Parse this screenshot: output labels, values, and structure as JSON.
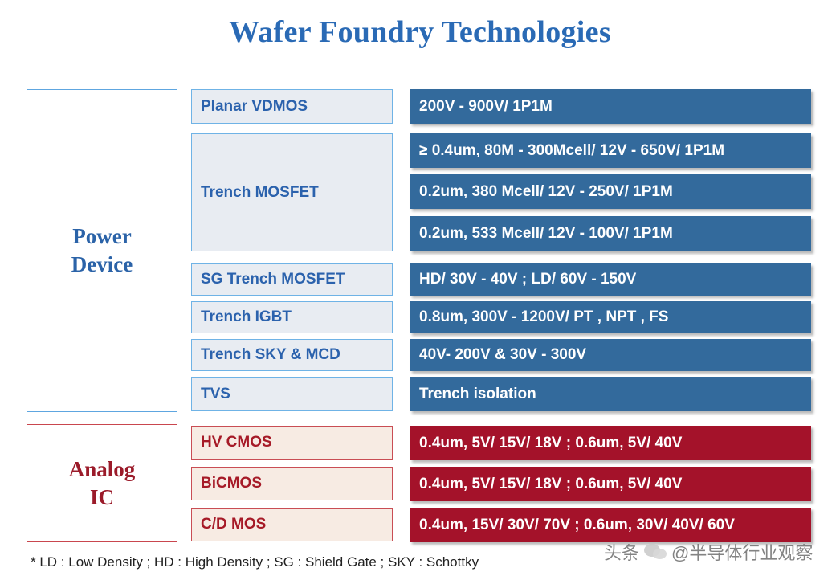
{
  "title": "Wafer Foundry Technologies",
  "power_group": {
    "line1": "Power",
    "line2": "Device"
  },
  "analog_group": {
    "line1": "Analog",
    "line2": "IC"
  },
  "power_rows": [
    {
      "tech": "Planar VDMOS",
      "specs": [
        "200V - 900V/ 1P1M"
      ]
    },
    {
      "tech": "Trench MOSFET",
      "specs": [
        "≥ 0.4um, 80M - 300Mcell/ 12V - 650V/ 1P1M",
        "0.2um, 380 Mcell/ 12V - 250V/ 1P1M",
        "0.2um, 533 Mcell/ 12V - 100V/ 1P1M"
      ]
    },
    {
      "tech": "SG Trench MOSFET",
      "specs": [
        "HD/ 30V - 40V ; LD/ 60V - 150V"
      ]
    },
    {
      "tech": "Trench IGBT",
      "specs": [
        "0.8um, 300V - 1200V/ PT , NPT , FS"
      ]
    },
    {
      "tech": "Trench SKY & MCD",
      "specs": [
        "40V- 200V & 30V - 300V"
      ]
    },
    {
      "tech": "TVS",
      "specs": [
        "Trench isolation"
      ]
    }
  ],
  "analog_rows": [
    {
      "tech": "HV CMOS",
      "spec": "0.4um, 5V/ 15V/ 18V ; 0.6um, 5V/ 40V"
    },
    {
      "tech": "BiCMOS",
      "spec": "0.4um, 5V/ 15V/ 18V ; 0.6um, 5V/ 40V"
    },
    {
      "tech": "C/D MOS",
      "spec": "0.4um, 15V/ 30V/ 70V ; 0.6um, 30V/ 40V/ 60V"
    }
  ],
  "footnote": "* LD : Low Density ; HD : High Density ; SG : Shield Gate ; SKY : Schottky",
  "watermark": {
    "prefix": "头条",
    "text": "@半导体行业观察",
    "icon": "chat-bubbles-icon"
  },
  "colors": {
    "title_blue": "#2a6ab5",
    "spec_blue": "#336a9c",
    "spec_red": "#a4122a",
    "tech_blue_bg": "#e8ecf2",
    "tech_red_bg": "#f7ebe3"
  }
}
